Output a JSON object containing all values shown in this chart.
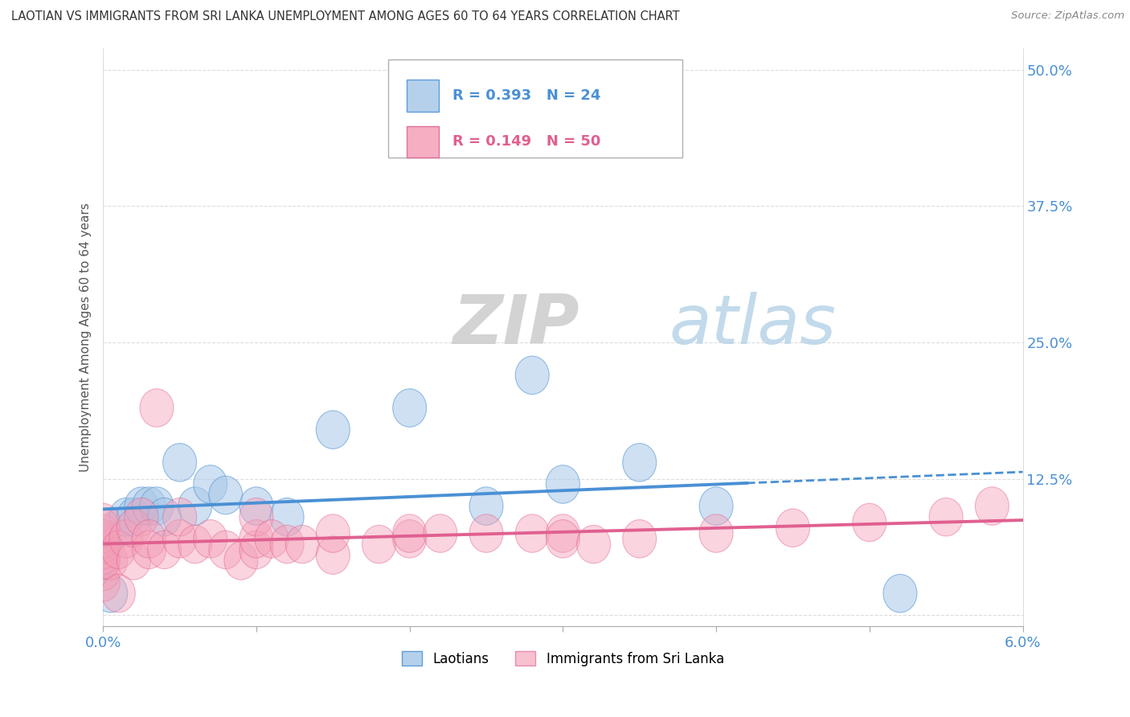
{
  "title": "LAOTIAN VS IMMIGRANTS FROM SRI LANKA UNEMPLOYMENT AMONG AGES 60 TO 64 YEARS CORRELATION CHART",
  "source": "Source: ZipAtlas.com",
  "ylabel": "Unemployment Among Ages 60 to 64 years",
  "xlim": [
    0.0,
    6.0
  ],
  "ylim": [
    -1.0,
    52.0
  ],
  "yticks": [
    0.0,
    12.5,
    25.0,
    37.5,
    50.0
  ],
  "ytick_labels": [
    "",
    "12.5%",
    "25.0%",
    "37.5%",
    "50.0%"
  ],
  "laotian_color": "#a8c8e8",
  "srilanka_color": "#f4a0b8",
  "laotian_edge_color": "#4a90d4",
  "srilanka_edge_color": "#e06090",
  "laotian_line_color": "#4a90d4",
  "srilanka_line_color": "#e06090",
  "background_color": "#ffffff",
  "grid_color": "#dddddd",
  "R_laotian": "0.393",
  "N_laotian": "24",
  "R_srilanka": "0.149",
  "N_srilanka": "50",
  "label_color_blue": "#4a90d4",
  "label_color_pink": "#e06090"
}
